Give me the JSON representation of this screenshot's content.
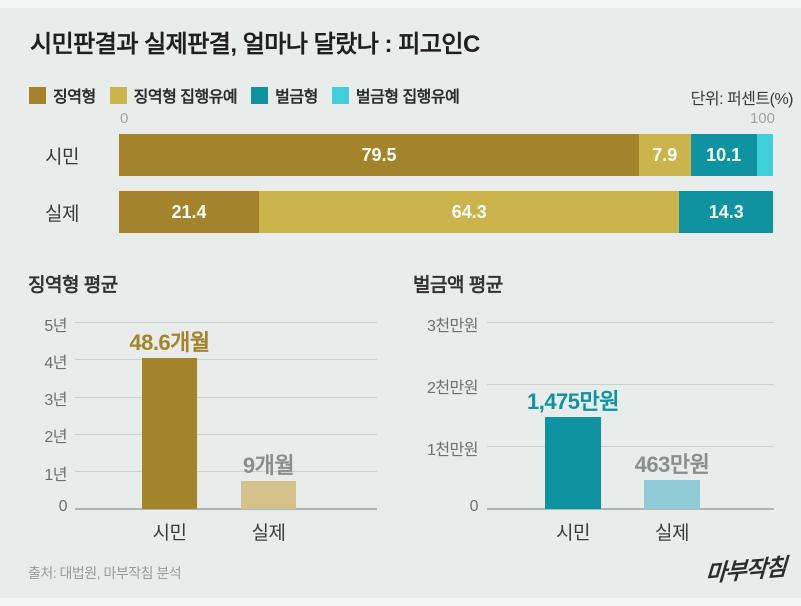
{
  "header": {
    "title": "시민판결과 실제판결, 얼마나 달랐나 : 피고인C",
    "unit_note": "단위: 퍼센트(%)"
  },
  "colors": {
    "background": "#e8edeb",
    "gold_dark": "#a3842b",
    "gold_light": "#cbb44c",
    "teal": "#0e93a0",
    "cyan": "#41d0db",
    "tan_light": "#d5c38c",
    "teal_light": "#8fccd6",
    "value_gray": "#8d8d8d"
  },
  "footer": {
    "source": "출처: 대법원, 마부작침 분석",
    "logo": "마부작침"
  },
  "chart_data": [
    {
      "type": "bar",
      "variant": "horizontal-stacked",
      "title": "시민판결과 실제판결, 얼마나 달랐나 : 피고인C",
      "unit": "퍼센트(%)",
      "legend_position": "top",
      "grid": false,
      "xlim": [
        0,
        100
      ],
      "x_ticks": [
        "0",
        "100"
      ],
      "categories": [
        "시민",
        "실제"
      ],
      "series": [
        {
          "name": "징역형",
          "color": "#a3842b",
          "values": [
            79.5,
            21.4
          ]
        },
        {
          "name": "징역형 집행유예",
          "color": "#cbb44c",
          "values": [
            7.9,
            64.3
          ]
        },
        {
          "name": "벌금형",
          "color": "#0e93a0",
          "values": [
            10.1,
            14.3
          ]
        },
        {
          "name": "벌금형 집행유예",
          "color": "#41d0db",
          "values": [
            2.5,
            0
          ]
        }
      ],
      "segment_labels": [
        [
          "79.5",
          "7.9",
          "10.1",
          ""
        ],
        [
          "21.4",
          "64.3",
          "14.3",
          ""
        ]
      ]
    },
    {
      "type": "bar",
      "title": "징역형 평균",
      "categories": [
        "시민",
        "실제"
      ],
      "values": [
        48.6,
        9
      ],
      "unit": "개월",
      "value_labels": [
        "48.6개월",
        "9개월"
      ],
      "value_label_colors": [
        "#a3842b",
        "#8d8d8d"
      ],
      "bar_colors": [
        "#a3842b",
        "#d5c38c"
      ],
      "ylim": [
        0,
        60
      ],
      "y_ticks": [
        {
          "label": "5년",
          "value": 60
        },
        {
          "label": "4년",
          "value": 48
        },
        {
          "label": "3년",
          "value": 36
        },
        {
          "label": "2년",
          "value": 24
        },
        {
          "label": "1년",
          "value": 12
        },
        {
          "label": "0",
          "value": 0
        }
      ],
      "grid": true
    },
    {
      "type": "bar",
      "title": "벌금액 평균",
      "categories": [
        "시민",
        "실제"
      ],
      "values": [
        1475,
        463
      ],
      "unit": "만원",
      "value_labels": [
        "1,475만원",
        "463만원"
      ],
      "value_label_colors": [
        "#0e93a0",
        "#8d8d8d"
      ],
      "bar_colors": [
        "#0e93a0",
        "#8fccd6"
      ],
      "ylim": [
        0,
        3000
      ],
      "y_ticks": [
        {
          "label": "3천만원",
          "value": 3000
        },
        {
          "label": "2천만원",
          "value": 2000
        },
        {
          "label": "1천만원",
          "value": 1000
        },
        {
          "label": "0",
          "value": 0
        }
      ],
      "grid": true
    }
  ]
}
